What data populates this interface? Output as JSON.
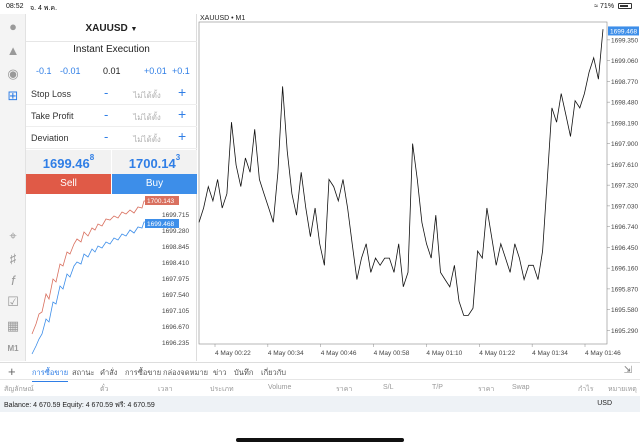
{
  "status": {
    "time": "08:52",
    "date": "จ. 4 พ.ค.",
    "battery": "71%"
  },
  "order": {
    "symbol": "XAUUSD",
    "execution": "Instant Execution",
    "volume_steps": [
      "-0.1",
      "-0.01",
      "0.01",
      "+0.01",
      "+0.1"
    ],
    "params": [
      {
        "label": "Stop Loss",
        "value": "ไม่ได้ตั้ง"
      },
      {
        "label": "Take Profit",
        "value": "ไม่ได้ตั้ง"
      },
      {
        "label": "Deviation",
        "value": "ไม่ได้ตั้ง"
      }
    ],
    "bid": {
      "main": "1699.46",
      "sup": "8"
    },
    "ask": {
      "main": "1700.14",
      "sup": "3"
    },
    "sell_label": "Sell",
    "buy_label": "Buy"
  },
  "mini_chart": {
    "ask_tag": "1700.143",
    "bid_tag": "1699.468",
    "price_labels": [
      "1699.715",
      "1699.280",
      "1698.845",
      "1698.410",
      "1697.975",
      "1697.540",
      "1697.105",
      "1696.670",
      "1696.235"
    ]
  },
  "chart_data": {
    "type": "line",
    "title": "XAUUSD • M1",
    "price_tag": "1699.468",
    "y_labels": [
      "1699.350",
      "1699.060",
      "1698.770",
      "1698.480",
      "1698.190",
      "1697.900",
      "1697.610",
      "1697.320",
      "1697.030",
      "1696.740",
      "1696.450",
      "1696.160",
      "1695.870",
      "1695.580",
      "1695.290"
    ],
    "x_labels": [
      "4 May 00:22",
      "4 May 00:34",
      "4 May 00:46",
      "4 May 00:58",
      "4 May 01:10",
      "4 May 01:22",
      "4 May 01:34",
      "4 May 01:46"
    ],
    "ylim": [
      1695.1,
      1699.6
    ],
    "values": [
      1696.8,
      1697.0,
      1697.3,
      1697.1,
      1697.4,
      1697.0,
      1697.2,
      1698.2,
      1697.6,
      1697.3,
      1697.7,
      1697.5,
      1698.1,
      1697.4,
      1697.2,
      1697.0,
      1696.8,
      1697.5,
      1698.7,
      1697.8,
      1697.2,
      1696.9,
      1697.5,
      1697.0,
      1696.6,
      1697.0,
      1696.5,
      1696.2,
      1697.4,
      1697.3,
      1697.1,
      1697.4,
      1697.0,
      1696.5,
      1696.0,
      1696.3,
      1696.5,
      1696.1,
      1696.3,
      1696.2,
      1696.3,
      1696.3,
      1696.1,
      1696.5,
      1695.9,
      1696.1,
      1697.9,
      1697.4,
      1696.8,
      1696.5,
      1696.3,
      1696.9,
      1696.1,
      1696.0,
      1695.9,
      1696.2,
      1695.7,
      1695.5,
      1695.5,
      1695.6,
      1696.4,
      1696.3,
      1697.0,
      1696.6,
      1696.2,
      1696.5,
      1696.3,
      1696.1,
      1696.5,
      1696.3,
      1696.0,
      1696.2,
      1696.2,
      1696.0,
      1696.4,
      1697.4,
      1698.4,
      1698.2,
      1698.6,
      1698.3,
      1698.0,
      1698.5,
      1698.4,
      1698.6,
      1698.9,
      1699.1,
      1698.8,
      1699.5
    ]
  },
  "tabs": {
    "items": [
      "การซื้อขาย",
      "สถานะ",
      "คำสั่ง",
      "การซื้อขาย",
      "กล่องจดหมาย",
      "ข่าว",
      "บันทึก",
      "เกี่ยวกับ"
    ]
  },
  "columns": [
    "สัญลักษณ์",
    "ตั๋ว",
    "เวลา",
    "ประเภท",
    "Volume",
    "ราคา",
    "S/L",
    "T/P",
    "ราคา",
    "Swap",
    "กำไร",
    "หมายเหตุ"
  ],
  "balance": {
    "text": "Balance: 4 670.59 Equity: 4 670.59 ฟรี: 4 670.59",
    "currency": "USD"
  }
}
